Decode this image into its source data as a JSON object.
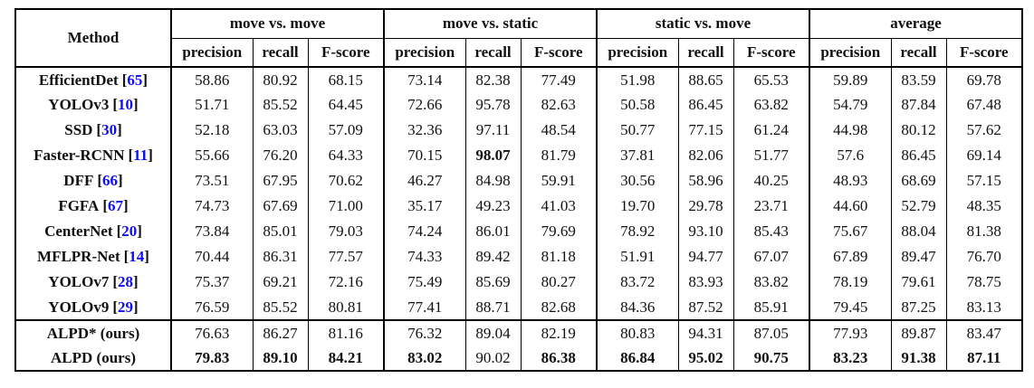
{
  "table": {
    "method_header": "Method",
    "ref_brackets": {
      "open": "[",
      "close": "]"
    },
    "colors": {
      "citation_blue": "#0e0ef2",
      "text": "#111111",
      "border": "#000000",
      "background": "#ffffff"
    },
    "groups": [
      {
        "label": "move vs. move"
      },
      {
        "label": "move vs. static"
      },
      {
        "label": "static vs. move"
      },
      {
        "label": "average"
      }
    ],
    "sub_headers": [
      "precision",
      "recall",
      "F-score"
    ],
    "rows": [
      {
        "method": "EfficientDet",
        "ref": "65",
        "separator_above": false,
        "values": [
          "58.86",
          "80.92",
          "68.15",
          "73.14",
          "82.38",
          "77.49",
          "51.98",
          "88.65",
          "65.53",
          "59.89",
          "83.59",
          "69.78"
        ],
        "bold": []
      },
      {
        "method": "YOLOv3",
        "ref": "10",
        "separator_above": false,
        "values": [
          "51.71",
          "85.52",
          "64.45",
          "72.66",
          "95.78",
          "82.63",
          "50.58",
          "86.45",
          "63.82",
          "54.79",
          "87.84",
          "67.48"
        ],
        "bold": []
      },
      {
        "method": "SSD",
        "ref": "30",
        "separator_above": false,
        "values": [
          "52.18",
          "63.03",
          "57.09",
          "32.36",
          "97.11",
          "48.54",
          "50.77",
          "77.15",
          "61.24",
          "44.98",
          "80.12",
          "57.62"
        ],
        "bold": []
      },
      {
        "method": "Faster-RCNN",
        "ref": "11",
        "separator_above": false,
        "values": [
          "55.66",
          "76.20",
          "64.33",
          "70.15",
          "98.07",
          "81.79",
          "37.81",
          "82.06",
          "51.77",
          "57.6",
          "86.45",
          "69.14"
        ],
        "bold": [
          4
        ]
      },
      {
        "method": "DFF",
        "ref": "66",
        "separator_above": false,
        "values": [
          "73.51",
          "67.95",
          "70.62",
          "46.27",
          "84.98",
          "59.91",
          "30.56",
          "58.96",
          "40.25",
          "48.93",
          "68.69",
          "57.15"
        ],
        "bold": []
      },
      {
        "method": "FGFA",
        "ref": "67",
        "separator_above": false,
        "values": [
          "74.73",
          "67.69",
          "71.00",
          "35.17",
          "49.23",
          "41.03",
          "19.70",
          "29.78",
          "23.71",
          "44.60",
          "52.79",
          "48.35"
        ],
        "bold": []
      },
      {
        "method": "CenterNet",
        "ref": "20",
        "separator_above": false,
        "values": [
          "73.84",
          "85.01",
          "79.03",
          "74.24",
          "86.01",
          "79.69",
          "78.92",
          "93.10",
          "85.43",
          "75.67",
          "88.04",
          "81.38"
        ],
        "bold": []
      },
      {
        "method": "MFLPR-Net",
        "ref": "14",
        "separator_above": false,
        "values": [
          "70.44",
          "86.31",
          "77.57",
          "74.33",
          "89.42",
          "81.18",
          "51.91",
          "94.77",
          "67.07",
          "67.89",
          "89.47",
          "76.70"
        ],
        "bold": []
      },
      {
        "method": "YOLOv7",
        "ref": "28",
        "separator_above": false,
        "values": [
          "75.37",
          "69.21",
          "72.16",
          "75.49",
          "85.69",
          "80.27",
          "83.72",
          "83.93",
          "83.82",
          "78.19",
          "79.61",
          "78.75"
        ],
        "bold": []
      },
      {
        "method": "YOLOv9",
        "ref": "29",
        "separator_above": false,
        "values": [
          "76.59",
          "85.52",
          "80.81",
          "77.41",
          "88.71",
          "82.68",
          "84.36",
          "87.52",
          "85.91",
          "79.45",
          "87.25",
          "83.13"
        ],
        "bold": []
      },
      {
        "method": "ALPD* (ours)",
        "ref": null,
        "separator_above": true,
        "values": [
          "76.63",
          "86.27",
          "81.16",
          "76.32",
          "89.04",
          "82.19",
          "80.83",
          "94.31",
          "87.05",
          "77.93",
          "89.87",
          "83.47"
        ],
        "bold": []
      },
      {
        "method": "ALPD (ours)",
        "ref": null,
        "separator_above": false,
        "values": [
          "79.83",
          "89.10",
          "84.21",
          "83.02",
          "90.02",
          "86.38",
          "86.84",
          "95.02",
          "90.75",
          "83.23",
          "91.38",
          "87.11"
        ],
        "bold": [
          0,
          1,
          2,
          3,
          5,
          6,
          7,
          8,
          9,
          10,
          11
        ]
      }
    ]
  }
}
